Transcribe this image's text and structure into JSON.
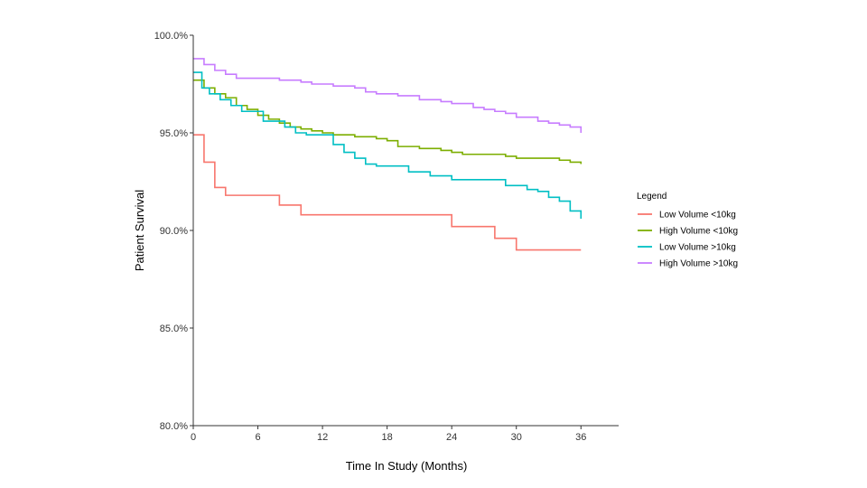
{
  "chart_data": {
    "type": "line",
    "title": "",
    "xlabel": "Time In Study (Months)",
    "ylabel": "Patient Survival",
    "xlim": [
      0,
      39.5
    ],
    "ylim": [
      80,
      100
    ],
    "x_ticks": [
      0,
      6,
      12,
      18,
      24,
      30,
      36
    ],
    "x_tick_labels": [
      "0",
      "6",
      "12",
      "18",
      "24",
      "30",
      "36"
    ],
    "y_ticks": [
      80,
      85,
      90,
      95,
      100
    ],
    "y_tick_labels": [
      "80.0%",
      "85.0%",
      "90.0%",
      "95.0%",
      "100.0%"
    ],
    "grid": false,
    "step": true,
    "legend": {
      "title": "Legend",
      "placement": "right"
    },
    "series": [
      {
        "name": "Low Volume <10kg",
        "color": "#F8766D",
        "points": [
          [
            0,
            94.9
          ],
          [
            1,
            93.5
          ],
          [
            2,
            92.2
          ],
          [
            3,
            91.8
          ],
          [
            8,
            91.3
          ],
          [
            10,
            90.8
          ],
          [
            24,
            90.2
          ],
          [
            28,
            89.6
          ],
          [
            30,
            89.0
          ],
          [
            36,
            89.0
          ]
        ]
      },
      {
        "name": "High Volume <10kg",
        "color": "#7CAE00",
        "points": [
          [
            0,
            97.7
          ],
          [
            1,
            97.3
          ],
          [
            2,
            97.0
          ],
          [
            3,
            96.8
          ],
          [
            4,
            96.4
          ],
          [
            5,
            96.2
          ],
          [
            6,
            95.9
          ],
          [
            7,
            95.7
          ],
          [
            8,
            95.5
          ],
          [
            9,
            95.3
          ],
          [
            10,
            95.2
          ],
          [
            11,
            95.1
          ],
          [
            12,
            95.0
          ],
          [
            13,
            94.9
          ],
          [
            15,
            94.8
          ],
          [
            17,
            94.7
          ],
          [
            18,
            94.6
          ],
          [
            19,
            94.3
          ],
          [
            21,
            94.2
          ],
          [
            23,
            94.1
          ],
          [
            24,
            94.0
          ],
          [
            25,
            93.9
          ],
          [
            29,
            93.8
          ],
          [
            30,
            93.7
          ],
          [
            34,
            93.6
          ],
          [
            35,
            93.5
          ],
          [
            36,
            93.4
          ]
        ]
      },
      {
        "name": "Low Volume >10kg",
        "color": "#00BFC4",
        "points": [
          [
            0,
            98.1
          ],
          [
            0.8,
            97.3
          ],
          [
            1.5,
            97.0
          ],
          [
            2.5,
            96.7
          ],
          [
            3.5,
            96.4
          ],
          [
            4.5,
            96.1
          ],
          [
            6.5,
            95.6
          ],
          [
            8.5,
            95.3
          ],
          [
            9.5,
            95.0
          ],
          [
            10.5,
            94.9
          ],
          [
            13,
            94.4
          ],
          [
            14,
            94.0
          ],
          [
            15,
            93.7
          ],
          [
            16,
            93.4
          ],
          [
            17,
            93.3
          ],
          [
            20,
            93.0
          ],
          [
            22,
            92.8
          ],
          [
            24,
            92.6
          ],
          [
            29,
            92.3
          ],
          [
            31,
            92.1
          ],
          [
            32,
            92.0
          ],
          [
            33,
            91.7
          ],
          [
            34,
            91.5
          ],
          [
            35,
            91.0
          ],
          [
            36,
            90.6
          ]
        ]
      },
      {
        "name": "High Volume >10kg",
        "color": "#C77CFF",
        "points": [
          [
            0,
            98.8
          ],
          [
            1,
            98.5
          ],
          [
            2,
            98.2
          ],
          [
            3,
            98.0
          ],
          [
            4,
            97.8
          ],
          [
            8,
            97.7
          ],
          [
            10,
            97.6
          ],
          [
            11,
            97.5
          ],
          [
            13,
            97.4
          ],
          [
            15,
            97.3
          ],
          [
            16,
            97.1
          ],
          [
            17,
            97.0
          ],
          [
            19,
            96.9
          ],
          [
            21,
            96.7
          ],
          [
            23,
            96.6
          ],
          [
            24,
            96.5
          ],
          [
            26,
            96.3
          ],
          [
            27,
            96.2
          ],
          [
            28,
            96.1
          ],
          [
            29,
            96.0
          ],
          [
            30,
            95.8
          ],
          [
            32,
            95.6
          ],
          [
            33,
            95.5
          ],
          [
            34,
            95.4
          ],
          [
            35,
            95.3
          ],
          [
            36,
            95.0
          ]
        ]
      }
    ]
  }
}
